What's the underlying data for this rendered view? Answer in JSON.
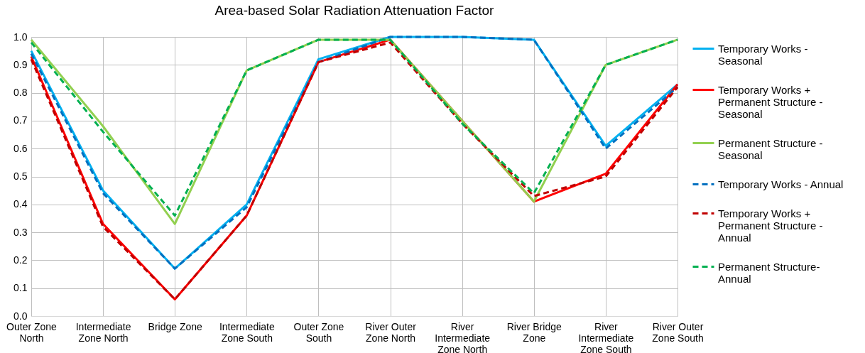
{
  "chart_data": {
    "type": "line",
    "title": "Area-based Solar Radiation Attenuation Factor",
    "categories": [
      "Outer Zone North",
      "Intermediate Zone North",
      "Bridge Zone",
      "Intermediate Zone South",
      "Outer Zone South",
      "River Outer Zone North",
      "River Intermediate Zone North",
      "River Bridge Zone",
      "River Intermediate Zone South",
      "River Outer Zone South"
    ],
    "series": [
      {
        "name": "Temporary Works - Seasonal",
        "color": "#00b0f0",
        "line_style": "solid",
        "values": [
          0.95,
          0.45,
          0.17,
          0.4,
          0.92,
          1.0,
          1.0,
          0.99,
          0.61,
          0.83
        ]
      },
      {
        "name": "Temporary Works + Permanent Structure - Seasonal",
        "color": "#ff0000",
        "line_style": "solid",
        "values": [
          0.93,
          0.33,
          0.06,
          0.36,
          0.91,
          0.99,
          0.7,
          0.41,
          0.51,
          0.83
        ]
      },
      {
        "name": "Permanent Structure - Seasonal",
        "color": "#92d050",
        "line_style": "solid",
        "values": [
          0.99,
          0.68,
          0.33,
          0.88,
          0.99,
          0.99,
          0.7,
          0.41,
          0.9,
          0.99
        ]
      },
      {
        "name": "Temporary Works - Annual",
        "color": "#0070c0",
        "line_style": "dashed",
        "values": [
          0.94,
          0.44,
          0.17,
          0.39,
          0.91,
          1.0,
          1.0,
          0.99,
          0.6,
          0.82
        ]
      },
      {
        "name": "Temporary Works + Permanent Structure - Annual",
        "color": "#c00000",
        "line_style": "dashed",
        "values": [
          0.92,
          0.32,
          0.06,
          0.36,
          0.91,
          0.98,
          0.69,
          0.43,
          0.5,
          0.82
        ]
      },
      {
        "name": "Permanent Structure- Annual",
        "color": "#00b050",
        "line_style": "dashed",
        "values": [
          0.98,
          0.66,
          0.36,
          0.88,
          0.99,
          0.99,
          0.69,
          0.44,
          0.9,
          0.99
        ]
      }
    ],
    "ylim": [
      0,
      1
    ],
    "yticks": [
      {
        "value": 0,
        "label": "0.0"
      },
      0.1,
      0.2,
      0.3,
      0.4,
      0.5,
      0.6,
      0.7,
      0.8,
      0.9,
      {
        "value": 1,
        "label": "1.0"
      }
    ],
    "grid": true,
    "legend": "right",
    "marker": "none"
  }
}
